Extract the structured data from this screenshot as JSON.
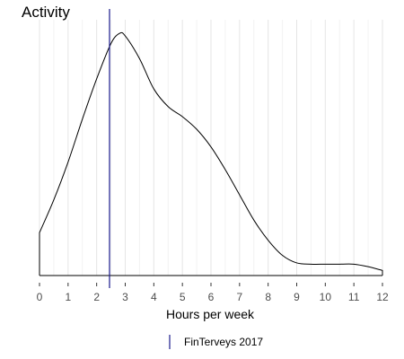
{
  "chart_data": {
    "type": "area",
    "title": "Activity",
    "xlabel": "Hours per week",
    "ylabel": "",
    "xlim": [
      0,
      12
    ],
    "x_ticks": [
      "0",
      "1",
      "2",
      "3",
      "4",
      "5",
      "6",
      "7",
      "8",
      "9",
      "10",
      "11",
      "12"
    ],
    "grid": true,
    "series": [
      {
        "name": "FinTerveys 2017",
        "x": [
          0,
          0.5,
          1,
          1.5,
          2,
          2.5,
          2.8,
          3,
          3.5,
          4,
          4.5,
          5,
          5.5,
          6,
          6.5,
          7,
          7.5,
          8,
          8.5,
          9,
          9.5,
          10,
          10.5,
          11,
          11.5,
          12
        ],
        "y": [
          0.17,
          0.3,
          0.45,
          0.62,
          0.78,
          0.92,
          0.96,
          0.95,
          0.86,
          0.74,
          0.67,
          0.63,
          0.58,
          0.51,
          0.42,
          0.32,
          0.22,
          0.14,
          0.08,
          0.05,
          0.045,
          0.045,
          0.045,
          0.045,
          0.035,
          0.02
        ]
      }
    ],
    "vlines": [
      {
        "name": "FinTerveys 2017",
        "x": 2.45,
        "color": "#1a1a8c"
      }
    ],
    "legend": {
      "position": "bottom",
      "label": "FinTerveys 2017",
      "color": "#1a1a8c"
    }
  }
}
